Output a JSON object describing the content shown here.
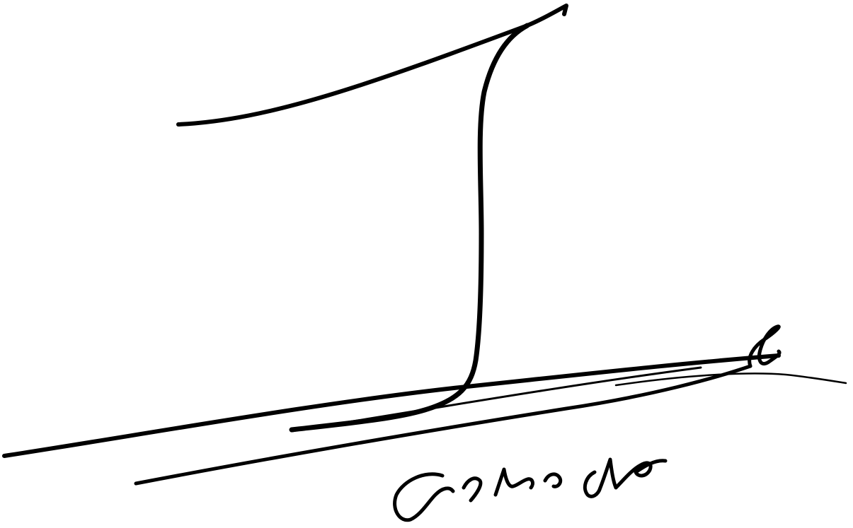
{
  "image": {
    "background_color": "#ffffff",
    "ink_color": "#000000"
  }
}
